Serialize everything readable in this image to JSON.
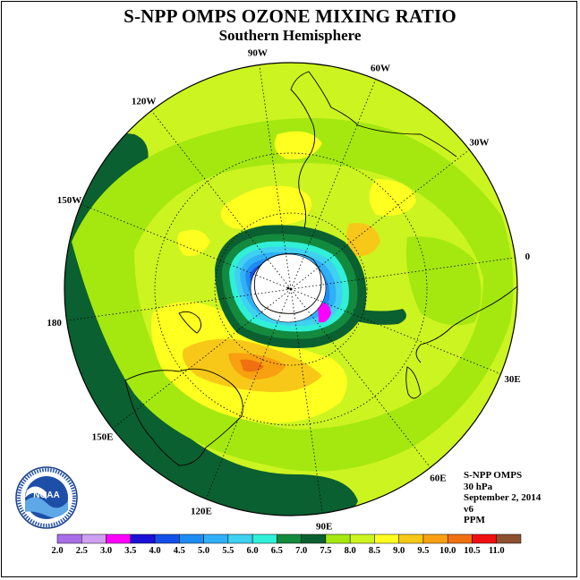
{
  "title": "S-NPP OMPS OZONE MIXING RATIO",
  "subtitle": "Southern Hemisphere",
  "map": {
    "projection": "polar-stereographic-south",
    "meridian_labels": [
      {
        "text": "90W",
        "lon": -90
      },
      {
        "text": "60W",
        "lon": -60
      },
      {
        "text": "30W",
        "lon": -30
      },
      {
        "text": "0",
        "lon": 0
      },
      {
        "text": "30E",
        "lon": 30
      },
      {
        "text": "60E",
        "lon": 60
      },
      {
        "text": "90E",
        "lon": 90
      },
      {
        "text": "120E",
        "lon": 120
      },
      {
        "text": "150E",
        "lon": 150
      },
      {
        "text": "180",
        "lon": 180
      },
      {
        "text": "150W",
        "lon": -150
      },
      {
        "text": "120W",
        "lon": -120
      }
    ],
    "latitude_circles_deg": [
      -30,
      -60
    ],
    "no_data_region": "south-pole"
  },
  "info": {
    "instrument": "S-NPP OMPS",
    "level": "30 hPa",
    "date": "September 2, 2014",
    "version": "v6",
    "units": "PPM"
  },
  "logo": {
    "text": "NOAA"
  },
  "colorbar": {
    "tick_labels": [
      "2.0",
      "2.5",
      "3.0",
      "3.5",
      "4.0",
      "4.5",
      "5.0",
      "5.5",
      "6.0",
      "6.5",
      "7.0",
      "7.5",
      "8.0",
      "8.5",
      "9.0",
      "9.5",
      "10.0",
      "10.5",
      "11.0"
    ],
    "colors": [
      "#a86ee8",
      "#cfa0f0",
      "#ff00ff",
      "#1b10d8",
      "#1450e8",
      "#1e8cf0",
      "#30b0f8",
      "#40d0f0",
      "#30f0d8",
      "#138a3e",
      "#0a6030",
      "#a4e810",
      "#ccf420",
      "#ffff20",
      "#f8c818",
      "#f8a010",
      "#f07010",
      "#f01010",
      "#8a5030"
    ]
  }
}
